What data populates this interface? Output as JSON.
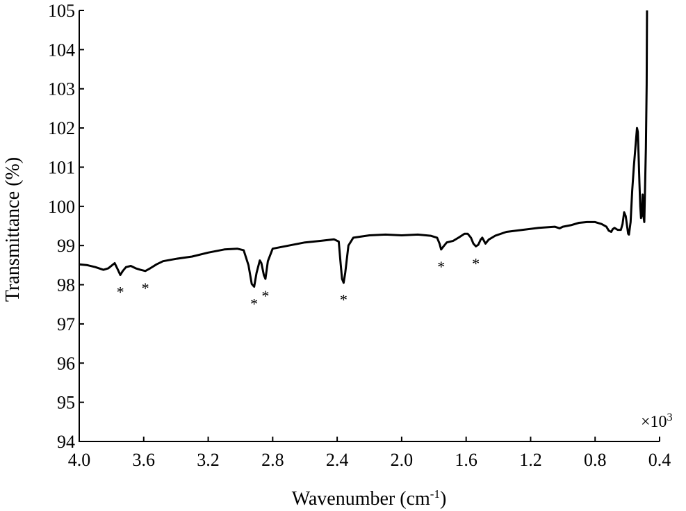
{
  "chart_data": {
    "type": "line",
    "xlabel": "Wavenumber (cm-1)",
    "ylabel": "Transmittance (%)",
    "x_multiplier": "×10",
    "x_multiplier_exponent": "3",
    "xlim": [
      4.0,
      0.4
    ],
    "ylim": [
      94,
      105
    ],
    "x_reversed": true,
    "grid": false,
    "x_ticks": [
      "4.0",
      "3.6",
      "3.2",
      "2.8",
      "2.4",
      "2.0",
      "1.6",
      "1.2",
      "0.8",
      "0.4"
    ],
    "y_ticks": [
      "94",
      "95",
      "96",
      "97",
      "98",
      "99",
      "100",
      "101",
      "102",
      "103",
      "104",
      "105"
    ],
    "series": [
      {
        "points": [
          [
            4.0,
            98.52
          ],
          [
            3.95,
            98.5
          ],
          [
            3.9,
            98.45
          ],
          [
            3.85,
            98.38
          ],
          [
            3.82,
            98.42
          ],
          [
            3.78,
            98.55
          ],
          [
            3.76,
            98.38
          ],
          [
            3.745,
            98.25
          ],
          [
            3.73,
            98.35
          ],
          [
            3.71,
            98.45
          ],
          [
            3.68,
            98.48
          ],
          [
            3.65,
            98.42
          ],
          [
            3.62,
            98.38
          ],
          [
            3.59,
            98.35
          ],
          [
            3.56,
            98.42
          ],
          [
            3.52,
            98.52
          ],
          [
            3.48,
            98.6
          ],
          [
            3.4,
            98.66
          ],
          [
            3.3,
            98.72
          ],
          [
            3.2,
            98.82
          ],
          [
            3.1,
            98.9
          ],
          [
            3.02,
            98.92
          ],
          [
            2.98,
            98.88
          ],
          [
            2.95,
            98.5
          ],
          [
            2.93,
            98.02
          ],
          [
            2.915,
            97.95
          ],
          [
            2.9,
            98.3
          ],
          [
            2.88,
            98.62
          ],
          [
            2.87,
            98.55
          ],
          [
            2.855,
            98.25
          ],
          [
            2.845,
            98.15
          ],
          [
            2.83,
            98.6
          ],
          [
            2.8,
            98.92
          ],
          [
            2.7,
            99.0
          ],
          [
            2.6,
            99.08
          ],
          [
            2.5,
            99.12
          ],
          [
            2.42,
            99.16
          ],
          [
            2.39,
            99.1
          ],
          [
            2.38,
            98.6
          ],
          [
            2.37,
            98.15
          ],
          [
            2.36,
            98.05
          ],
          [
            2.35,
            98.3
          ],
          [
            2.33,
            99.0
          ],
          [
            2.3,
            99.2
          ],
          [
            2.2,
            99.26
          ],
          [
            2.1,
            99.28
          ],
          [
            2.0,
            99.26
          ],
          [
            1.9,
            99.28
          ],
          [
            1.82,
            99.25
          ],
          [
            1.78,
            99.2
          ],
          [
            1.765,
            99.05
          ],
          [
            1.755,
            98.9
          ],
          [
            1.74,
            98.98
          ],
          [
            1.72,
            99.08
          ],
          [
            1.68,
            99.12
          ],
          [
            1.64,
            99.22
          ],
          [
            1.61,
            99.3
          ],
          [
            1.59,
            99.3
          ],
          [
            1.57,
            99.2
          ],
          [
            1.555,
            99.05
          ],
          [
            1.54,
            98.98
          ],
          [
            1.525,
            99.02
          ],
          [
            1.51,
            99.15
          ],
          [
            1.5,
            99.2
          ],
          [
            1.48,
            99.05
          ],
          [
            1.46,
            99.15
          ],
          [
            1.42,
            99.25
          ],
          [
            1.35,
            99.35
          ],
          [
            1.25,
            99.4
          ],
          [
            1.15,
            99.45
          ],
          [
            1.05,
            99.48
          ],
          [
            1.02,
            99.44
          ],
          [
            1.0,
            99.48
          ],
          [
            0.95,
            99.52
          ],
          [
            0.9,
            99.58
          ],
          [
            0.85,
            99.6
          ],
          [
            0.8,
            99.6
          ],
          [
            0.76,
            99.55
          ],
          [
            0.73,
            99.48
          ],
          [
            0.715,
            99.38
          ],
          [
            0.7,
            99.35
          ],
          [
            0.69,
            99.42
          ],
          [
            0.68,
            99.45
          ],
          [
            0.66,
            99.4
          ],
          [
            0.64,
            99.4
          ],
          [
            0.63,
            99.55
          ],
          [
            0.62,
            99.85
          ],
          [
            0.61,
            99.75
          ],
          [
            0.6,
            99.45
          ],
          [
            0.595,
            99.3
          ],
          [
            0.59,
            99.28
          ],
          [
            0.58,
            99.6
          ],
          [
            0.57,
            100.4
          ],
          [
            0.56,
            101.0
          ],
          [
            0.55,
            101.5
          ],
          [
            0.54,
            102.0
          ],
          [
            0.535,
            101.9
          ],
          [
            0.53,
            101.3
          ],
          [
            0.525,
            100.6
          ],
          [
            0.52,
            100.0
          ],
          [
            0.515,
            99.7
          ],
          [
            0.51,
            99.8
          ],
          [
            0.505,
            100.3
          ],
          [
            0.5,
            99.75
          ],
          [
            0.495,
            99.6
          ],
          [
            0.49,
            100.5
          ],
          [
            0.485,
            101.5
          ],
          [
            0.48,
            103.1
          ],
          [
            0.478,
            105.0
          ]
        ]
      }
    ],
    "annotations": [
      {
        "text": "*",
        "x": 3.745,
        "y": 98.25
      },
      {
        "text": "*",
        "x": 3.59,
        "y": 98.35
      },
      {
        "text": "*",
        "x": 2.915,
        "y": 97.95
      },
      {
        "text": "*",
        "x": 2.845,
        "y": 98.15
      },
      {
        "text": "*",
        "x": 2.36,
        "y": 98.05
      },
      {
        "text": "*",
        "x": 1.755,
        "y": 98.9
      },
      {
        "text": "*",
        "x": 1.54,
        "y": 98.98
      }
    ]
  }
}
